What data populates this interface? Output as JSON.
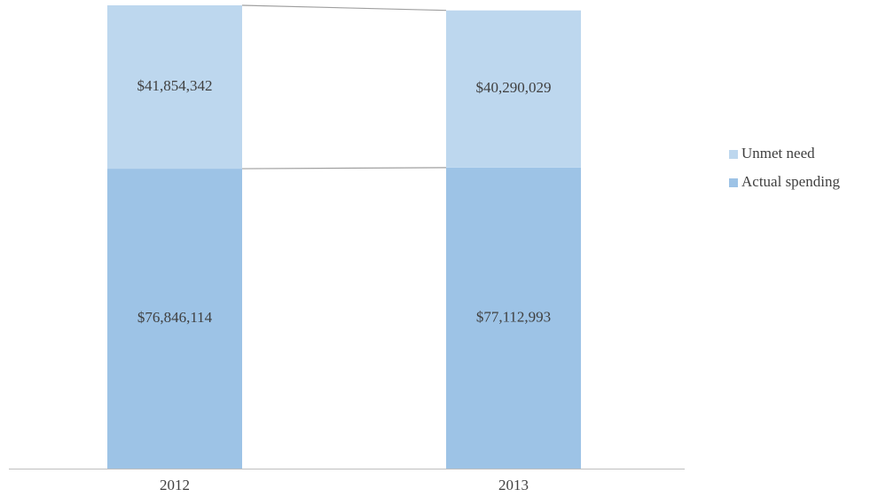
{
  "chart_data": {
    "type": "stacked_bar",
    "categories": [
      "2012",
      "2013"
    ],
    "series": [
      {
        "name": "Actual spending",
        "color": "#9dc3e6",
        "values": [
          76846114,
          77112993
        ],
        "value_labels": [
          "$76,846,114",
          "$77,112,993"
        ]
      },
      {
        "name": "Unmet need",
        "color": "#bdd7ee",
        "values": [
          41854342,
          40290029
        ],
        "value_labels": [
          "$41,854,342",
          "$40,290,029"
        ]
      }
    ],
    "series_lines": true
  }
}
